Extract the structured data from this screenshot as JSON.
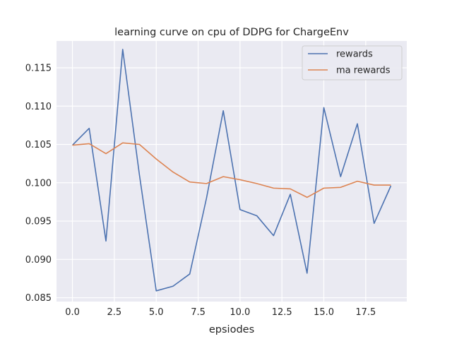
{
  "chart_data": {
    "type": "line",
    "title": "learning curve on cpu of DDPG for ChargeEnv",
    "xlabel": "epsiodes",
    "ylabel": "",
    "xlim": [
      -0.95,
      19.95
    ],
    "ylim": [
      0.0845,
      0.1185
    ],
    "xticks": [
      0,
      2.5,
      5,
      7.5,
      10,
      12.5,
      15,
      17.5
    ],
    "xtick_labels": [
      "0.0",
      "2.5",
      "5.0",
      "7.5",
      "10.0",
      "12.5",
      "15.0",
      "17.5"
    ],
    "yticks": [
      0.085,
      0.09,
      0.095,
      0.1,
      0.105,
      0.11,
      0.115
    ],
    "ytick_labels": [
      "0.085",
      "0.090",
      "0.095",
      "0.100",
      "0.105",
      "0.110",
      "0.115"
    ],
    "grid": true,
    "legend_position": "top-right",
    "x": [
      0,
      1,
      2,
      3,
      4,
      5,
      6,
      7,
      8,
      9,
      10,
      11,
      12,
      13,
      14,
      15,
      16,
      17,
      18,
      19
    ],
    "series": [
      {
        "name": "rewards",
        "color": "#4c72b0",
        "values": [
          0.1049,
          0.1071,
          0.0924,
          0.1174,
          0.101,
          0.0859,
          0.0865,
          0.0881,
          0.098,
          0.1094,
          0.0965,
          0.0957,
          0.0931,
          0.0985,
          0.0882,
          0.1098,
          0.1008,
          0.1077,
          0.0947,
          0.0996
        ]
      },
      {
        "name": "ma rewards",
        "color": "#dd8452",
        "values": [
          0.1049,
          0.1051,
          0.1038,
          0.1052,
          0.105,
          0.1031,
          0.1014,
          0.1001,
          0.0999,
          0.1008,
          0.1004,
          0.0999,
          0.0993,
          0.0992,
          0.0981,
          0.0993,
          0.0994,
          0.1002,
          0.0997,
          0.0997
        ]
      }
    ]
  }
}
